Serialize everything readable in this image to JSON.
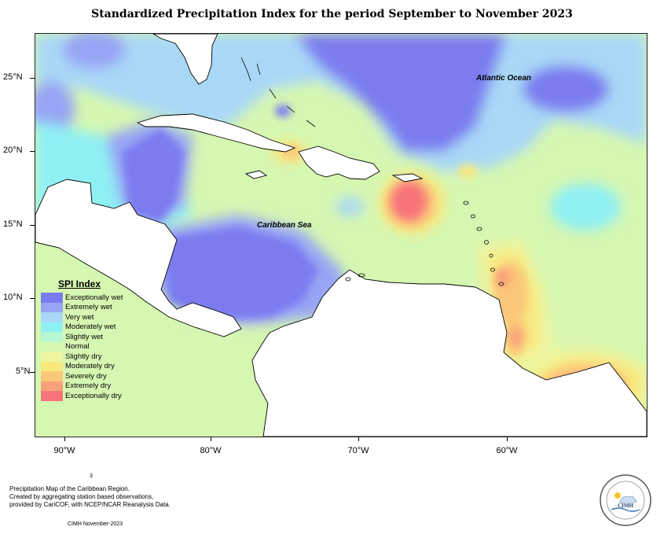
{
  "title": "Standardized Precipitation Index for the period September to November 2023",
  "map": {
    "y_axis_labels": [
      "25°N",
      "20°N",
      "15°N",
      "10°N",
      "5°N"
    ],
    "x_axis_labels": [
      "90°W",
      "80°W",
      "70°W",
      "60°W"
    ],
    "ocean_labels": {
      "atlantic": "Atlantic Ocean",
      "caribbean": "Caribbean Sea"
    }
  },
  "legend": {
    "title": "SPI Index",
    "items": [
      {
        "label": "Exceptionally wet",
        "color": "#7b7bf0"
      },
      {
        "label": "Extremely wet",
        "color": "#98a4f5"
      },
      {
        "label": "Very wet",
        "color": "#a9d8f7"
      },
      {
        "label": "Moderately wet",
        "color": "#8ff0f4"
      },
      {
        "label": "Slightly wet",
        "color": "#b6f7d4"
      },
      {
        "label": "Normal",
        "color": "#d6f7b2"
      },
      {
        "label": "Slightly dry",
        "color": "#eef59e"
      },
      {
        "label": "Moderately dry",
        "color": "#f9e87e"
      },
      {
        "label": "Severely dry",
        "color": "#fbc77a"
      },
      {
        "label": "Extremely dry",
        "color": "#f9a27a"
      },
      {
        "label": "Exceptionally dry",
        "color": "#f7737a"
      }
    ]
  },
  "footer": {
    "number": "3",
    "lines": [
      "Precipitation Map of the Caribbean Region.",
      "Created by aggregating station based observations,",
      "provided by CariCOF, with NCEP/NCAR Reanalysis Data."
    ],
    "date": "CIMH November-2023",
    "logo_text": "CIMH"
  }
}
